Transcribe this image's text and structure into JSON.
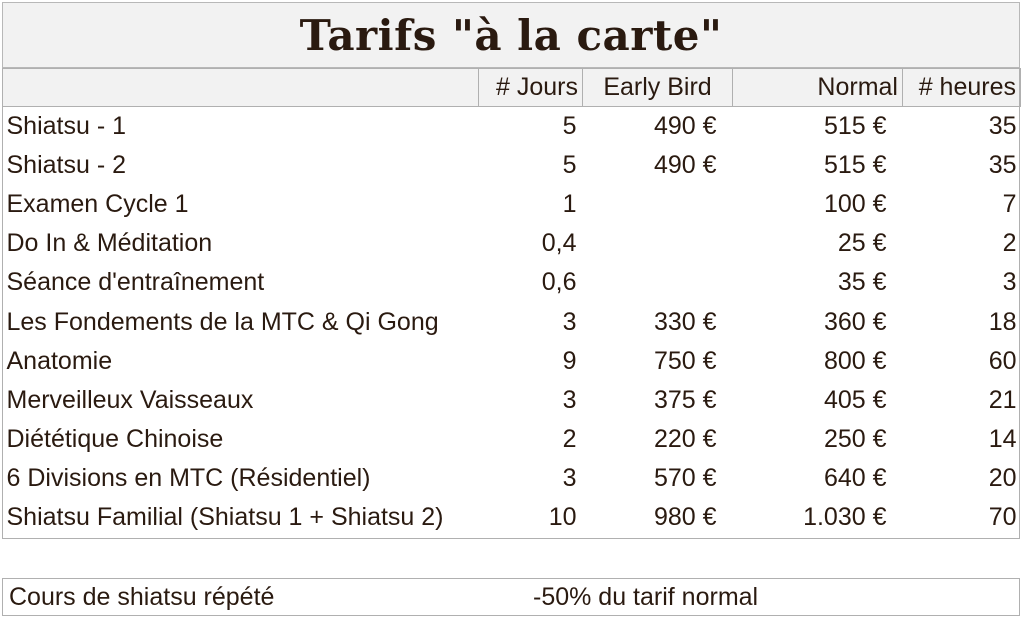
{
  "title": "Tarifs \"à la carte\"",
  "headers": {
    "name": "",
    "days": "# Jours",
    "early": "Early Bird",
    "normal": "Normal",
    "hours": "# heures"
  },
  "rows": [
    {
      "name": "Shiatsu - 1",
      "days": "5",
      "early": "490 €",
      "normal": "515 €",
      "hours": "35"
    },
    {
      "name": "Shiatsu - 2",
      "days": "5",
      "early": "490 €",
      "normal": "515 €",
      "hours": "35"
    },
    {
      "name": "Examen Cycle  1",
      "days": "1",
      "early": "",
      "normal": "100 €",
      "hours": "7"
    },
    {
      "name": "Do In & Méditation",
      "days": "0,4",
      "early": "",
      "normal": "25 €",
      "hours": "2"
    },
    {
      "name": "Séance d'entraînement",
      "days": "0,6",
      "early": "",
      "normal": "35 €",
      "hours": "3"
    },
    {
      "name": "Les Fondements de la MTC & Qi Gong",
      "days": "3",
      "early": "330 €",
      "normal": "360 €",
      "hours": "18"
    },
    {
      "name": "Anatomie",
      "days": "9",
      "early": "750 €",
      "normal": "800 €",
      "hours": "60"
    },
    {
      "name": "Merveilleux Vaisseaux",
      "days": "3",
      "early": "375 €",
      "normal": "405 €",
      "hours": "21"
    },
    {
      "name": "Diététique Chinoise",
      "days": "2",
      "early": "220 €",
      "normal": "250 €",
      "hours": "14"
    },
    {
      "name": "6 Divisions en MTC (Résidentiel)",
      "days": "3",
      "early": "570 €",
      "normal": "640 €",
      "hours": "20"
    },
    {
      "name": "Shiatsu Familial (Shiatsu 1 + Shiatsu 2)",
      "days": "10",
      "early": "980 €",
      "normal": "1.030 €",
      "hours": "70"
    }
  ],
  "note": {
    "label": "Cours de shiatsu répété",
    "value": "-50% du tarif normal"
  }
}
